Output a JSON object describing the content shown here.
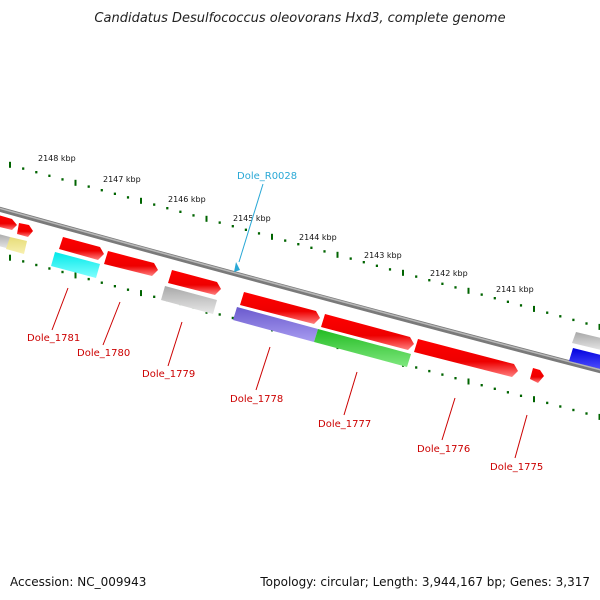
{
  "header": {
    "title": "Candidatus Desulfococcus oleovorans Hxd3, complete genome"
  },
  "footer": {
    "accession": "Accession: NC_009943",
    "summary": "Topology: circular; Length: 3,944,167 bp; Genes: 3,317"
  },
  "ruler": {
    "ticks": [
      "2148 kbp",
      "2147 kbp",
      "2146 kbp",
      "2145 kbp",
      "2144 kbp",
      "2143 kbp",
      "2142 kbp",
      "2141 kbp"
    ]
  },
  "features": {
    "rna": {
      "name": "Dole_R0028",
      "color": "#29a8d6"
    },
    "gene_labels": [
      "Dole_1781",
      "Dole_1780",
      "Dole_1779",
      "Dole_1778",
      "Dole_1777",
      "Dole_1776",
      "Dole_1775"
    ]
  },
  "colors": {
    "backbone": "#808080",
    "cds_forward": "#ff0000",
    "tick": "#006400",
    "label_line": "#cc0000",
    "cyan": "#00ffff",
    "yellow": "#f0e68c",
    "gray": "#c0c0c0",
    "purple": "#7b68ee",
    "green": "#32cd32",
    "blue": "#0000ff"
  }
}
